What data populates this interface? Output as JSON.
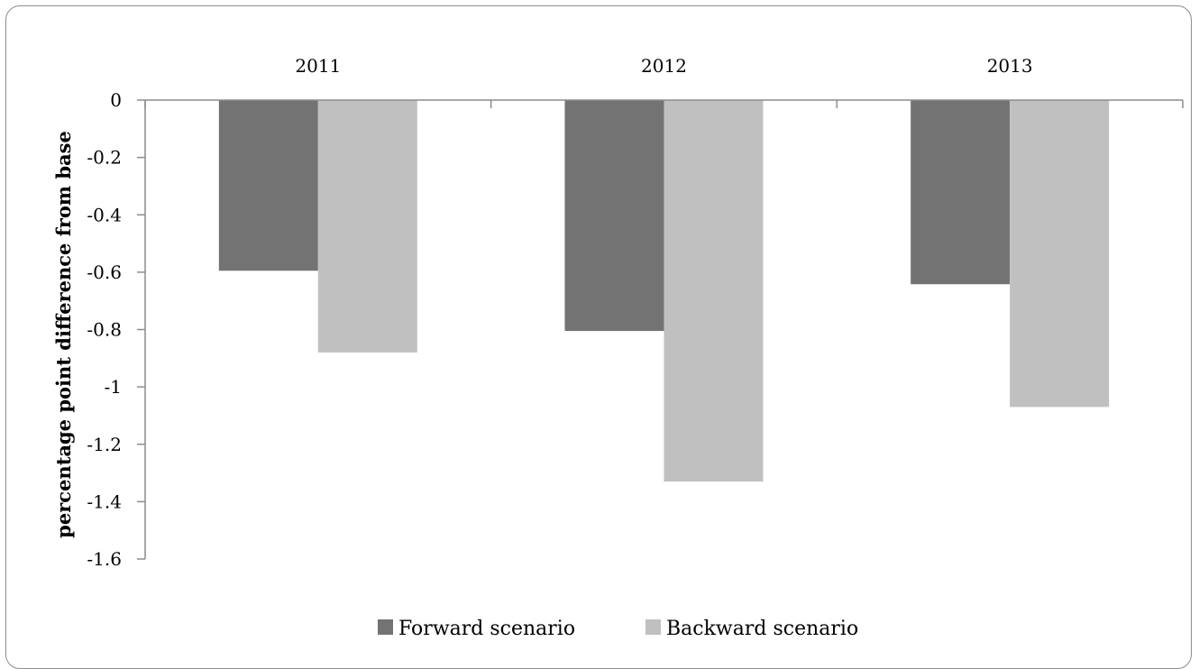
{
  "chart_data": {
    "type": "bar",
    "categories": [
      "2011",
      "2012",
      "2013"
    ],
    "series": [
      {
        "name": "Forward scenario",
        "values": [
          -0.595,
          -0.805,
          -0.642
        ],
        "color": "#737373"
      },
      {
        "name": "Backward scenario",
        "values": [
          -0.88,
          -1.33,
          -1.07
        ],
        "color": "#c0c0c0"
      }
    ],
    "title": "",
    "xlabel": "",
    "ylabel": "percentage point difference from base",
    "ylim": [
      -1.6,
      0
    ],
    "yticks": [
      "0",
      "-0.2",
      "-0.4",
      "-0.6",
      "-0.8",
      "-1",
      "-1.2",
      "-1.4",
      "-1.6"
    ],
    "ytick_values": [
      0,
      -0.2,
      -0.4,
      -0.6,
      -0.8,
      -1.0,
      -1.2,
      -1.4,
      -1.6
    ],
    "category_labels_position": "top",
    "grid": false,
    "legend": "bottom-center"
  }
}
